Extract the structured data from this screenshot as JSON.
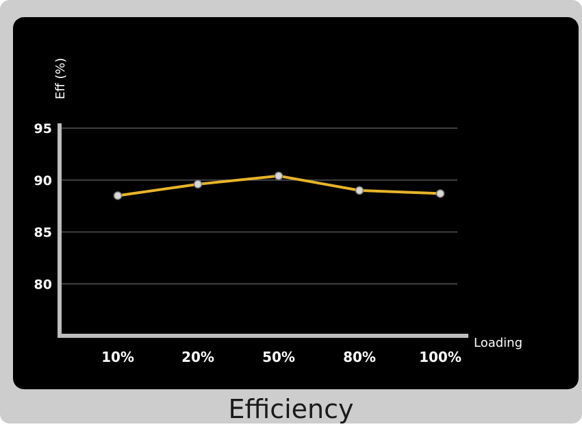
{
  "chart_data": {
    "type": "line",
    "title": "Efficiency",
    "ylabel": "Eff (%)",
    "xlabel": "Loading",
    "categories": [
      "10%",
      "20%",
      "50%",
      "80%",
      "100%"
    ],
    "series": [
      {
        "values": [
          88.5,
          89.6,
          90.4,
          89.0,
          88.7
        ]
      }
    ],
    "yticks": [
      80,
      85,
      90,
      95
    ],
    "ylim": [
      75,
      95
    ],
    "grid": true,
    "colors": {
      "line": "#e8b428",
      "marker": "#d8d8d8",
      "grid": "#555555",
      "axis": "#bdbdbd"
    }
  }
}
